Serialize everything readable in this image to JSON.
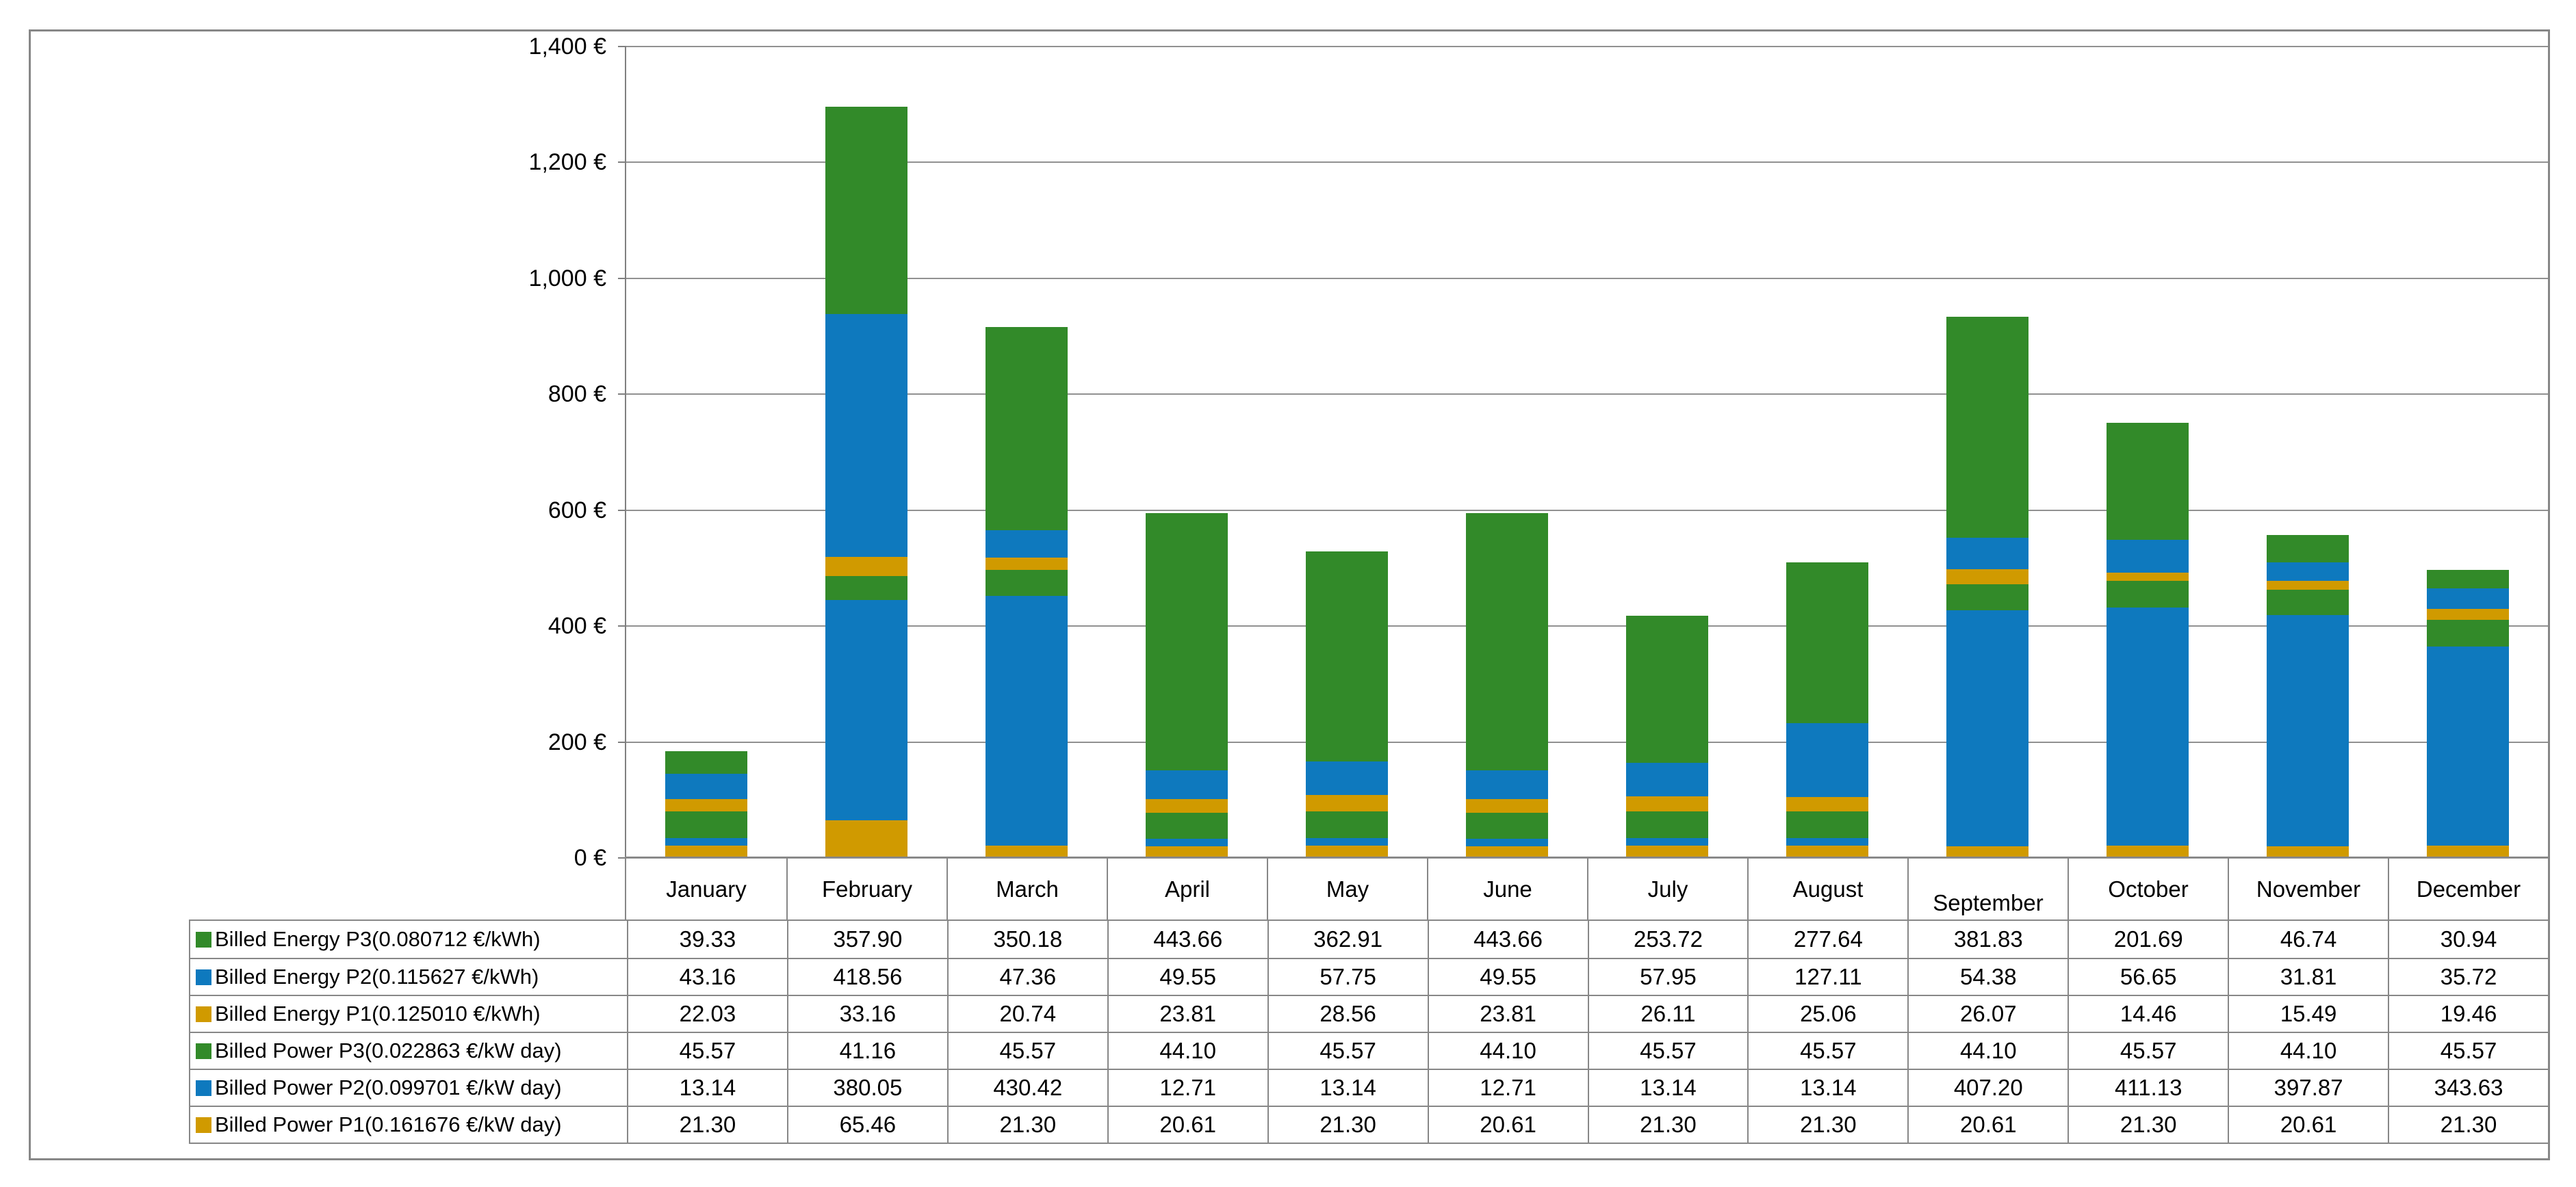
{
  "chart_data": {
    "type": "bar",
    "stacked": true,
    "title": "",
    "categories": [
      "January",
      "February",
      "March",
      "April",
      "May",
      "June",
      "July",
      "August",
      "September",
      "October",
      "November",
      "December"
    ],
    "series": [
      {
        "id": "billed-energy-p3",
        "name": "Billed Energy P3(0.080712 €/kWh)",
        "color": "#328a29",
        "values": [
          "39.33",
          "357.90",
          "350.18",
          "443.66",
          "362.91",
          "443.66",
          "253.72",
          "277.64",
          "381.83",
          "201.69",
          "46.74",
          "30.94"
        ]
      },
      {
        "id": "billed-energy-p2",
        "name": "Billed Energy P2(0.115627 €/kWh)",
        "color": "#0e79be",
        "values": [
          "43.16",
          "418.56",
          "47.36",
          "49.55",
          "57.75",
          "49.55",
          "57.95",
          "127.11",
          "54.38",
          "56.65",
          "31.81",
          "35.72"
        ]
      },
      {
        "id": "billed-energy-p1",
        "name": "Billed Energy P1(0.125010 €/kWh)",
        "color": "#d09a00",
        "values": [
          "22.03",
          "33.16",
          "20.74",
          "23.81",
          "28.56",
          "23.81",
          "26.11",
          "25.06",
          "26.07",
          "14.46",
          "15.49",
          "19.46"
        ]
      },
      {
        "id": "billed-power-p3",
        "name": "Billed Power P3(0.022863 €/kW day)",
        "color": "#328a29",
        "values": [
          "45.57",
          "41.16",
          "45.57",
          "44.10",
          "45.57",
          "44.10",
          "45.57",
          "45.57",
          "44.10",
          "45.57",
          "44.10",
          "45.57"
        ]
      },
      {
        "id": "billed-power-p2",
        "name": "Billed Power P2(0.099701 €/kW day)",
        "color": "#0e79be",
        "values": [
          "13.14",
          "380.05",
          "430.42",
          "12.71",
          "13.14",
          "12.71",
          "13.14",
          "13.14",
          "407.20",
          "411.13",
          "397.87",
          "343.63"
        ]
      },
      {
        "id": "billed-power-p1",
        "name": "Billed Power P1(0.161676 €/kW day)",
        "color": "#d09a00",
        "values": [
          "21.30",
          "65.46",
          "21.30",
          "20.61",
          "21.30",
          "20.61",
          "21.30",
          "21.30",
          "20.61",
          "21.30",
          "20.61",
          "21.30"
        ]
      }
    ],
    "stack_order_bottom_to_top": [
      "billed-power-p1",
      "billed-power-p2",
      "billed-power-p3",
      "billed-energy-p1",
      "billed-energy-p2",
      "billed-energy-p3"
    ],
    "y_axis": {
      "min": 0,
      "max": 1400,
      "step": 200,
      "currency": "€",
      "tick_labels": [
        "0 €",
        "200 €",
        "400 €",
        "600 €",
        "800 €",
        "1,000 €",
        "1,200 €",
        "1,400 €"
      ]
    },
    "grid": true,
    "legend_position": "table-rows-left",
    "colors": {
      "green": "#328a29",
      "blue": "#0e79be",
      "orange": "#d09a00",
      "grid": "#878787"
    }
  }
}
